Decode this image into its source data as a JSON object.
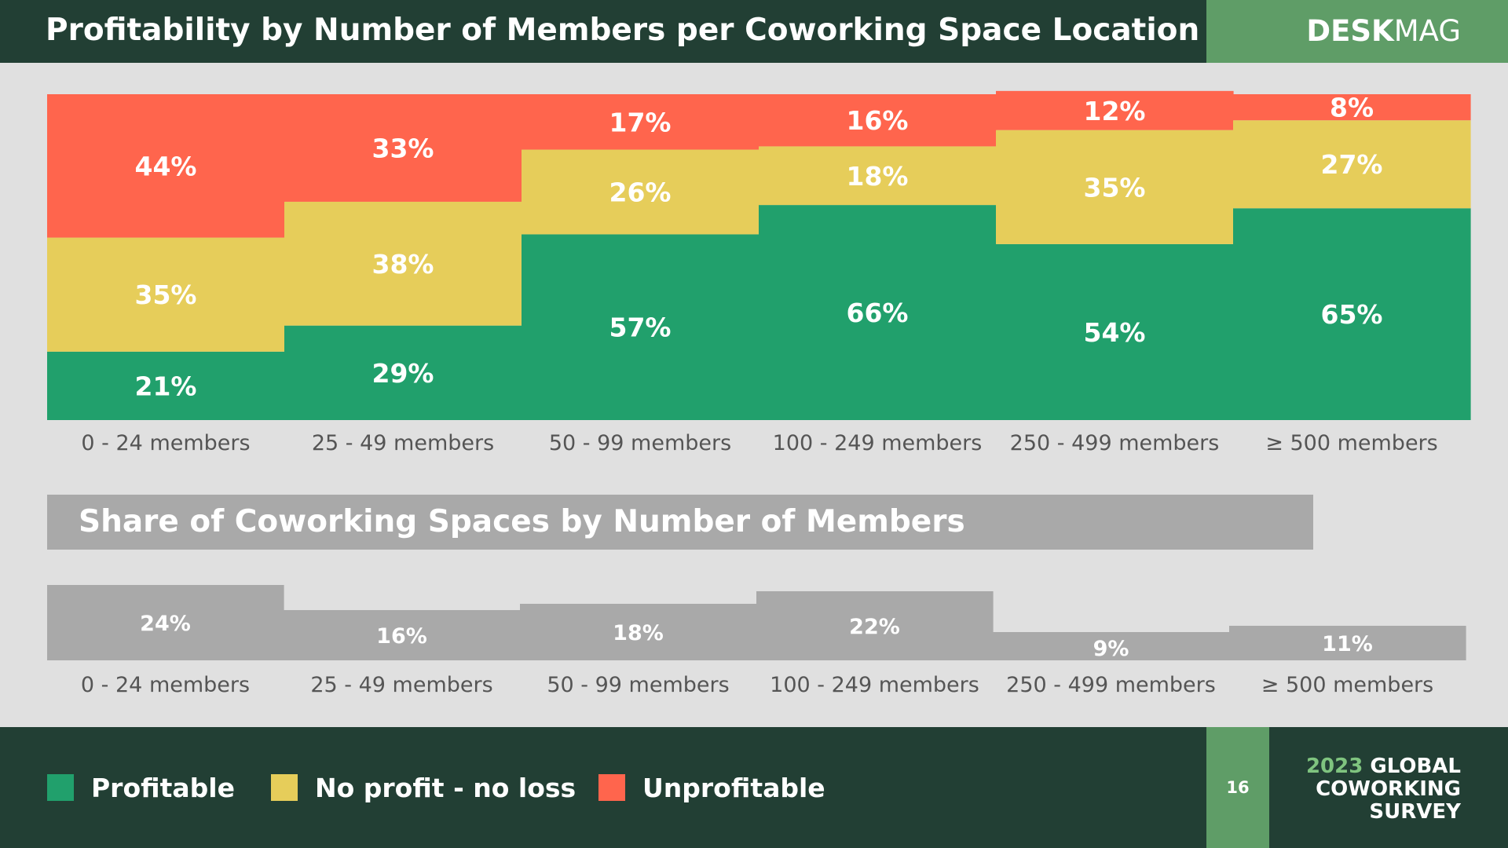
{
  "header": {
    "title": "Profitability by Number of Members per Coworking Space Location",
    "brand_bold": "DESK",
    "brand_light": "MAG"
  },
  "colors": {
    "profitable": "#21a06c",
    "no_profit_no_loss": "#e6cd5a",
    "unprofitable": "#ff654d",
    "share_bar": "#a9a9a9",
    "dark_green": "#223f34",
    "brand_green": "#5f9d67"
  },
  "chart_data": [
    {
      "type": "bar",
      "stacked": true,
      "title": "Profitability by Number of Members per Coworking Space Location",
      "categories": [
        "0 - 24 members",
        "25 - 49 members",
        "50 - 99 members",
        "100 - 249 members",
        "250 - 499 members",
        "≥ 500 members"
      ],
      "series": [
        {
          "name": "Profitable",
          "values": [
            21,
            29,
            57,
            66,
            54,
            65
          ]
        },
        {
          "name": "No profit - no loss",
          "values": [
            35,
            38,
            26,
            18,
            35,
            27
          ]
        },
        {
          "name": "Unprofitable",
          "values": [
            44,
            33,
            17,
            16,
            12,
            8
          ]
        }
      ],
      "ylim": [
        0,
        100
      ],
      "unit": "%",
      "grid": false,
      "legend": "bottom-left"
    },
    {
      "type": "bar",
      "title": "Share of Coworking Spaces by Number of Members",
      "categories": [
        "0 - 24 members",
        "25 - 49 members",
        "50 - 99 members",
        "100 - 249 members",
        "250 - 499 members",
        "≥ 500 members"
      ],
      "values": [
        24,
        16,
        18,
        22,
        9,
        11
      ],
      "unit": "%",
      "grid": false
    }
  ],
  "share_section": {
    "title": "Share of Coworking Spaces by Number of Members"
  },
  "legend": {
    "items": [
      {
        "label": "Profitable",
        "color": "#21a06c"
      },
      {
        "label": "No profit - no loss",
        "color": "#e6cd5a"
      },
      {
        "label": "Unprofitable",
        "color": "#ff654d"
      }
    ]
  },
  "footer": {
    "page_number": "16",
    "survey_year": "2023",
    "survey_line1": "GLOBAL",
    "survey_line2": "COWORKING",
    "survey_line3": "SURVEY"
  }
}
